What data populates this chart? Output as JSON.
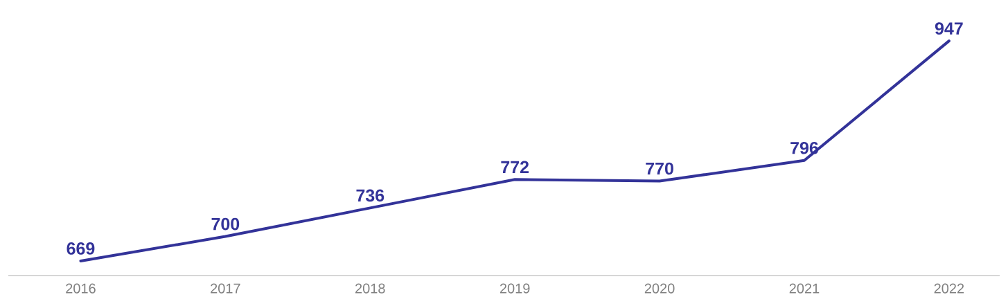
{
  "chart_data": {
    "type": "line",
    "categories": [
      "2016",
      "2017",
      "2018",
      "2019",
      "2020",
      "2021",
      "2022"
    ],
    "series": [
      {
        "color": "#333399",
        "values": [
          669,
          700,
          736,
          772,
          770,
          796,
          947
        ]
      }
    ],
    "data_labels": true,
    "tick_labels": "x",
    "marker": "none",
    "line_style": "solid"
  }
}
